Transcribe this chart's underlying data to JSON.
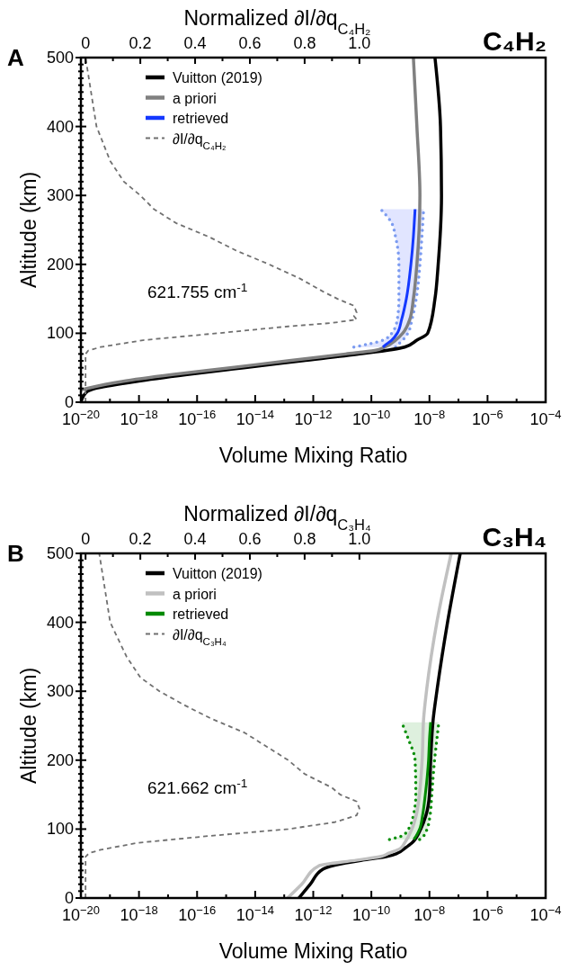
{
  "chart_data": [
    {
      "type": "line",
      "title": "C₄H₂",
      "xlabel": "Volume Mixing Ratio",
      "ylabel": "Altitude (km)",
      "x2label": "Normalized ∂I/∂q$_{C₄H₂}$",
      "annotations": [
        "A",
        "621.755 cm$^{-1}$"
      ],
      "log": "x",
      "legend": "top left",
      "xlim": [
        1e-20,
        0.0001
      ],
      "xticks": [
        {
          "value": 1e-20,
          "label": "10$^{−20}$"
        },
        {
          "value": 1e-19,
          "label": null
        },
        {
          "value": 1e-18,
          "label": "10$^{−18}$"
        },
        {
          "value": 1e-17,
          "label": null
        },
        {
          "value": 1e-16,
          "label": "10$^{−16}$"
        },
        {
          "value": 1e-15,
          "label": null
        },
        {
          "value": 1e-14,
          "label": "10$^{−14}$"
        },
        {
          "value": 1e-13,
          "label": null
        },
        {
          "value": 1e-12,
          "label": "10$^{−12}$"
        },
        {
          "value": 1e-11,
          "label": null
        },
        {
          "value": 1e-10,
          "label": "10$^{−10}$"
        },
        {
          "value": 1e-09,
          "label": null
        },
        {
          "value": 1e-08,
          "label": "10$^{−8}$"
        },
        {
          "value": 1e-07,
          "label": null
        },
        {
          "value": 1e-06,
          "label": "10$^{−6}$"
        },
        {
          "value": 1e-05,
          "label": null
        },
        {
          "value": 0.0001,
          "label": "10$^{−4}$"
        }
      ],
      "x2lim": [
        -0.017,
        1.68
      ],
      "x2ticks": [
        0,
        {
          "value": 0.1,
          "label": null
        },
        0.2,
        {
          "value": 0.3,
          "label": null
        },
        0.4,
        {
          "value": 0.5,
          "label": null
        },
        0.6,
        {
          "value": 0.7,
          "label": null
        },
        0.8,
        {
          "value": 0.9,
          "label": null
        },
        {
          "value": 1,
          "label": "1.0"
        }
      ],
      "ylim": [
        0,
        500
      ],
      "yticks": [
        0,
        {
          "value": 10,
          "label": null
        },
        {
          "value": 20,
          "label": null
        },
        {
          "value": 30,
          "label": null
        },
        {
          "value": 40,
          "label": null
        },
        {
          "value": 50,
          "label": null
        },
        {
          "value": 60,
          "label": null
        },
        {
          "value": 70,
          "label": null
        },
        {
          "value": 80,
          "label": null
        },
        {
          "value": 90,
          "label": null
        },
        100,
        {
          "value": 110,
          "label": null
        },
        {
          "value": 120,
          "label": null
        },
        {
          "value": 130,
          "label": null
        },
        {
          "value": 140,
          "label": null
        },
        {
          "value": 150,
          "label": null
        },
        {
          "value": 160,
          "label": null
        },
        {
          "value": 170,
          "label": null
        },
        {
          "value": 180,
          "label": null
        },
        {
          "value": 190,
          "label": null
        },
        200,
        {
          "value": 210,
          "label": null
        },
        {
          "value": 220,
          "label": null
        },
        {
          "value": 230,
          "label": null
        },
        {
          "value": 240,
          "label": null
        },
        {
          "value": 250,
          "label": null
        },
        {
          "value": 260,
          "label": null
        },
        {
          "value": 270,
          "label": null
        },
        {
          "value": 280,
          "label": null
        },
        {
          "value": 290,
          "label": null
        },
        300,
        {
          "value": 310,
          "label": null
        },
        {
          "value": 320,
          "label": null
        },
        {
          "value": 330,
          "label": null
        },
        {
          "value": 340,
          "label": null
        },
        {
          "value": 350,
          "label": null
        },
        {
          "value": 360,
          "label": null
        },
        {
          "value": 370,
          "label": null
        },
        {
          "value": 380,
          "label": null
        },
        {
          "value": 390,
          "label": null
        },
        400,
        {
          "value": 410,
          "label": null
        },
        {
          "value": 420,
          "label": null
        },
        {
          "value": 430,
          "label": null
        },
        {
          "value": 440,
          "label": null
        },
        {
          "value": 450,
          "label": null
        },
        {
          "value": 460,
          "label": null
        },
        {
          "value": 470,
          "label": null
        },
        {
          "value": 480,
          "label": null
        },
        {
          "value": 490,
          "label": null
        },
        500
      ],
      "series": [
        {
          "name": "Vuitton (2019)",
          "color": "#000000",
          "x": [
            1e-20,
            1.6e-20,
            3.2e-20,
            7.9e-19,
            4.5e-17,
            4e-15,
            4e-13,
            4e-11,
            1.4e-09,
            3.7e-09,
            8.7e-09,
            1.55e-08,
            2e-08,
            2.6e-08,
            2.4e-08,
            1.55e-08
          ],
          "values": [
            0,
            15,
            20,
            30,
            40,
            50,
            60,
            70,
            80,
            90,
            100,
            150,
            200,
            300,
            400,
            500
          ]
        },
        {
          "name": "a priori",
          "color": "#808080",
          "x": [
            1e-20,
            1.6e-20,
            2.6e-19,
            1.4e-17,
            1.4e-15,
            1.3e-13,
            1.3e-11,
            1.3e-10,
            2.9e-10,
            6.8e-10,
            1.2e-09,
            2.1e-09,
            2.8e-09,
            3.7e-09,
            4.7e-09,
            3.7e-09,
            2.8e-09
          ],
          "values": [
            18,
            20,
            30,
            40,
            50,
            60,
            70,
            75,
            80,
            90,
            100,
            120,
            150,
            200,
            300,
            400,
            500
          ]
        },
        {
          "name": "retrieved",
          "color": "#1438ff",
          "x": [
            2.5e-10,
            3.5e-10,
            5e-10,
            7.8e-10,
            1.1e-09,
            1.6e-09,
            2.3e-09,
            2.8e-09,
            3e-09,
            3.2e-09
          ],
          "values": [
            80,
            85,
            90,
            100,
            120,
            150,
            200,
            240,
            260,
            280
          ]
        },
        {
          "color": "#7b9bf0",
          "line_style": "dotted",
          "x": [
            2.5e-11,
            9.1e-11,
            2.5e-10,
            5e-10,
            7.8e-10,
            8.9e-10,
            8.9e-10,
            6.8e-10,
            5e-10,
            2.1e-10
          ],
          "values": [
            80,
            85,
            90,
            100,
            120,
            150,
            200,
            240,
            260,
            280
          ]
        },
        {
          "color": "#7b9bf0",
          "line_style": "dotted",
          "x": [
            6.8e-10,
            8.9e-10,
            1.2e-09,
            1.8e-09,
            2.5e-09,
            3.5e-09,
            4.7e-09,
            5.5e-09,
            5.9e-09,
            6.3e-09
          ],
          "values": [
            80,
            85,
            90,
            100,
            120,
            150,
            200,
            240,
            260,
            280
          ]
        },
        {
          "name": "∂I/∂q$_{C₄H₂}$",
          "color": "#707070",
          "axis": "x2",
          "line_style": "dashed",
          "x": [
            0,
            0,
            0.01,
            0.055,
            0.21,
            0.48,
            0.74,
            0.9,
            0.99,
            0.98,
            0.99,
            0.98,
            0.92,
            0.87,
            0.78,
            0.67,
            0.55,
            0.45,
            0.33,
            0.25,
            0.2,
            0.14,
            0.09,
            0.04,
            0.02,
            0
          ],
          "values": [
            0,
            70,
            75,
            80,
            90,
            100,
            110,
            115,
            120,
            125,
            130,
            140,
            150,
            160,
            180,
            200,
            220,
            240,
            260,
            280,
            300,
            320,
            350,
            400,
            450,
            500
          ]
        }
      ]
    },
    {
      "type": "line",
      "title": "C₃H₄",
      "xlabel": "Volume Mixing Ratio",
      "ylabel": "Altitude (km)",
      "x2label": "Normalized ∂I/∂q$_{C₃H₄}$",
      "annotations": [
        "B",
        "621.662 cm$^{-1}$"
      ],
      "log": "x",
      "legend": "top left",
      "xlim": [
        1e-20,
        0.0001
      ],
      "xticks": [
        {
          "value": 1e-20,
          "label": "10$^{−20}$"
        },
        {
          "value": 1e-19,
          "label": null
        },
        {
          "value": 1e-18,
          "label": "10$^{−18}$"
        },
        {
          "value": 1e-17,
          "label": null
        },
        {
          "value": 1e-16,
          "label": "10$^{−16}$"
        },
        {
          "value": 1e-15,
          "label": null
        },
        {
          "value": 1e-14,
          "label": "10$^{−14}$"
        },
        {
          "value": 1e-13,
          "label": null
        },
        {
          "value": 1e-12,
          "label": "10$^{−12}$"
        },
        {
          "value": 1e-11,
          "label": null
        },
        {
          "value": 1e-10,
          "label": "10$^{−10}$"
        },
        {
          "value": 1e-09,
          "label": null
        },
        {
          "value": 1e-08,
          "label": "10$^{−8}$"
        },
        {
          "value": 1e-07,
          "label": null
        },
        {
          "value": 1e-06,
          "label": "10$^{−6}$"
        },
        {
          "value": 1e-05,
          "label": null
        },
        {
          "value": 0.0001,
          "label": "10$^{−4}$"
        }
      ],
      "x2lim": [
        -0.017,
        1.68
      ],
      "x2ticks": [
        0,
        {
          "value": 0.1,
          "label": null
        },
        0.2,
        {
          "value": 0.3,
          "label": null
        },
        0.4,
        {
          "value": 0.5,
          "label": null
        },
        0.6,
        {
          "value": 0.7,
          "label": null
        },
        0.8,
        {
          "value": 0.9,
          "label": null
        },
        {
          "value": 1,
          "label": "1.0"
        }
      ],
      "ylim": [
        0,
        500
      ],
      "yticks": [
        0,
        {
          "value": 10,
          "label": null
        },
        {
          "value": 20,
          "label": null
        },
        {
          "value": 30,
          "label": null
        },
        {
          "value": 40,
          "label": null
        },
        {
          "value": 50,
          "label": null
        },
        {
          "value": 60,
          "label": null
        },
        {
          "value": 70,
          "label": null
        },
        {
          "value": 80,
          "label": null
        },
        {
          "value": 90,
          "label": null
        },
        100,
        {
          "value": 110,
          "label": null
        },
        {
          "value": 120,
          "label": null
        },
        {
          "value": 130,
          "label": null
        },
        {
          "value": 140,
          "label": null
        },
        {
          "value": 150,
          "label": null
        },
        {
          "value": 160,
          "label": null
        },
        {
          "value": 170,
          "label": null
        },
        {
          "value": 180,
          "label": null
        },
        {
          "value": 190,
          "label": null
        },
        200,
        {
          "value": 210,
          "label": null
        },
        {
          "value": 220,
          "label": null
        },
        {
          "value": 230,
          "label": null
        },
        {
          "value": 240,
          "label": null
        },
        {
          "value": 250,
          "label": null
        },
        {
          "value": 260,
          "label": null
        },
        {
          "value": 270,
          "label": null
        },
        {
          "value": 280,
          "label": null
        },
        {
          "value": 290,
          "label": null
        },
        300,
        {
          "value": 310,
          "label": null
        },
        {
          "value": 320,
          "label": null
        },
        {
          "value": 330,
          "label": null
        },
        {
          "value": 340,
          "label": null
        },
        {
          "value": 350,
          "label": null
        },
        {
          "value": 360,
          "label": null
        },
        {
          "value": 370,
          "label": null
        },
        {
          "value": 380,
          "label": null
        },
        {
          "value": 390,
          "label": null
        },
        400,
        {
          "value": 410,
          "label": null
        },
        {
          "value": 420,
          "label": null
        },
        {
          "value": 430,
          "label": null
        },
        {
          "value": 440,
          "label": null
        },
        {
          "value": 450,
          "label": null
        },
        {
          "value": 460,
          "label": null
        },
        {
          "value": 470,
          "label": null
        },
        {
          "value": 480,
          "label": null
        },
        {
          "value": 490,
          "label": null
        },
        500
      ],
      "series": [
        {
          "name": "Vuitton (2019)",
          "color": "#000000",
          "x": [
            3.2e-13,
            7.9e-13,
            2.2e-12,
            1e-11,
            5e-11,
            3.2e-10,
            7.9e-10,
            1.4e-09,
            2.5e-09,
            5e-09,
            7.6e-09,
            1e-08,
            1.1e-08,
            1.35e-08,
            1.8e-08,
            4.2e-08,
            1.15e-07
          ],
          "values": [
            0,
            20,
            42,
            50,
            55,
            60,
            65,
            72,
            80,
            100,
            120,
            150,
            200,
            260,
            300,
            400,
            500
          ]
        },
        {
          "name": "a priori",
          "color": "#c0c0c0",
          "x": [
            1.3e-13,
            4e-13,
            1.6e-12,
            3.2e-11,
            2e-10,
            4e-10,
            1e-09,
            1.4e-09,
            2.5e-09,
            3.5e-09,
            4.5e-09,
            5.6e-09,
            6.3e-09,
            7.9e-09,
            1.8e-08,
            5.6e-08
          ],
          "values": [
            0,
            20,
            47,
            55,
            60,
            65,
            72,
            80,
            100,
            120,
            150,
            200,
            260,
            300,
            400,
            500
          ]
        },
        {
          "name": "retrieved",
          "color": "#008a00",
          "x": [
            2.9e-09,
            3.5e-09,
            4.6e-09,
            5.8e-09,
            7.2e-09,
            9.3e-09,
            1e-08,
            1.1e-08
          ],
          "values": [
            85,
            90,
            100,
            120,
            150,
            200,
            230,
            255
          ]
        },
        {
          "color": "#0a8f0a",
          "line_style": "dotted",
          "x": [
            4.2e-10,
            1.1e-09,
            1.9e-09,
            2.8e-09,
            3.4e-09,
            3.2e-09,
            1.9e-09,
            1.1e-09
          ],
          "values": [
            85,
            90,
            100,
            120,
            150,
            200,
            230,
            255
          ]
        },
        {
          "color": "#0a8f0a",
          "line_style": "dotted",
          "x": [
            4.6e-09,
            6.3e-09,
            8.3e-09,
            1.05e-08,
            1.2e-08,
            1.5e-08,
            1.8e-08,
            2.1e-08
          ],
          "values": [
            85,
            90,
            100,
            120,
            150,
            200,
            230,
            255
          ]
        },
        {
          "name": "∂I/∂q$_{C₃H₄}$",
          "color": "#707070",
          "axis": "x2",
          "line_style": "dashed",
          "x": [
            0,
            0,
            0.013,
            0.055,
            0.19,
            0.45,
            0.74,
            0.91,
            0.99,
            1.0,
            0.99,
            0.93,
            0.9,
            0.8,
            0.74,
            0.66,
            0.58,
            0.46,
            0.36,
            0.27,
            0.2,
            0.15,
            0.09,
            0.07,
            0.05
          ],
          "values": [
            0,
            60,
            65,
            70,
            80,
            90,
            100,
            110,
            120,
            130,
            140,
            150,
            160,
            180,
            200,
            220,
            240,
            260,
            280,
            300,
            320,
            350,
            400,
            450,
            500
          ]
        }
      ]
    }
  ]
}
